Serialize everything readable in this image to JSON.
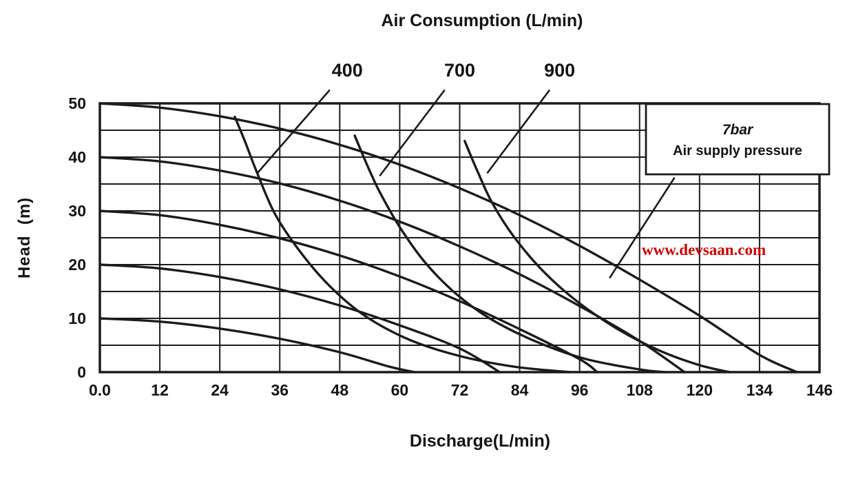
{
  "chart_data": {
    "type": "line",
    "title": "Air Consumption (L/min)",
    "xlabel": "Discharge(L/min)",
    "ylabel": "Head  (m)",
    "watermark": "www.devsaan.com",
    "xlim": [
      0,
      146
    ],
    "ylim": [
      0,
      50
    ],
    "x_ticks": [
      0,
      12,
      24,
      36,
      48,
      60,
      72,
      84,
      96,
      108,
      120,
      134,
      146
    ],
    "x_tick_labels": [
      "0.0",
      "12",
      "24",
      "36",
      "48",
      "60",
      "72",
      "84",
      "96",
      "108",
      "120",
      "134",
      "146"
    ],
    "y_ticks": [
      0,
      10,
      20,
      30,
      40,
      50
    ],
    "y_tick_labels": [
      "0",
      "10",
      "20",
      "30",
      "40",
      "50"
    ],
    "y_minor_grid_step": 5,
    "grid": true,
    "legend": {
      "position": "top-right",
      "line1": "7bar",
      "line2": "Air supply pressure"
    },
    "legend_leader": [
      [
        115,
        36.2
      ],
      [
        102,
        17.5
      ]
    ],
    "series": [
      {
        "name": "pump-curve-head-50m",
        "points": [
          [
            0,
            50
          ],
          [
            12,
            49.2
          ],
          [
            24,
            47.6
          ],
          [
            36,
            45.3
          ],
          [
            48,
            42.3
          ],
          [
            60,
            38.6
          ],
          [
            72,
            34.2
          ],
          [
            84,
            29.2
          ],
          [
            96,
            23.5
          ],
          [
            108,
            17.2
          ],
          [
            120,
            10.5
          ],
          [
            134,
            3.2
          ],
          [
            141.5,
            0
          ]
        ]
      },
      {
        "name": "pump-curve-head-40m",
        "points": [
          [
            0,
            40
          ],
          [
            12,
            39.2
          ],
          [
            24,
            37.5
          ],
          [
            36,
            35.1
          ],
          [
            48,
            31.9
          ],
          [
            60,
            28
          ],
          [
            72,
            23.4
          ],
          [
            84,
            18.2
          ],
          [
            96,
            12.3
          ],
          [
            108,
            5.8
          ],
          [
            117,
            0
          ]
        ]
      },
      {
        "name": "pump-curve-head-30m",
        "points": [
          [
            0,
            30
          ],
          [
            12,
            29.2
          ],
          [
            24,
            27.4
          ],
          [
            36,
            24.9
          ],
          [
            48,
            21.7
          ],
          [
            60,
            17.8
          ],
          [
            72,
            13.2
          ],
          [
            84,
            8
          ],
          [
            96,
            2.4
          ],
          [
            99.5,
            0
          ]
        ]
      },
      {
        "name": "pump-curve-head-20m",
        "points": [
          [
            0,
            20
          ],
          [
            12,
            19.3
          ],
          [
            24,
            17.7
          ],
          [
            36,
            15.4
          ],
          [
            48,
            12.4
          ],
          [
            60,
            8.7
          ],
          [
            72,
            4.4
          ],
          [
            80,
            0
          ]
        ]
      },
      {
        "name": "pump-curve-head-10m",
        "points": [
          [
            0,
            10
          ],
          [
            12,
            9.4
          ],
          [
            24,
            8.1
          ],
          [
            36,
            6.2
          ],
          [
            48,
            3.7
          ],
          [
            58,
            1
          ],
          [
            63,
            0
          ]
        ]
      },
      {
        "name": "air-consumption-400",
        "points": [
          [
            27,
            47.5
          ],
          [
            29,
            43
          ],
          [
            31.5,
            37
          ],
          [
            35,
            29.5
          ],
          [
            40,
            22.5
          ],
          [
            46,
            16
          ],
          [
            53,
            10.5
          ],
          [
            62,
            6
          ],
          [
            72,
            3
          ],
          [
            83,
            1
          ],
          [
            94,
            0
          ]
        ]
      },
      {
        "name": "air-consumption-700",
        "points": [
          [
            51,
            44
          ],
          [
            53.5,
            38.5
          ],
          [
            56,
            33.5
          ],
          [
            60,
            27
          ],
          [
            65,
            20.5
          ],
          [
            71,
            14.8
          ],
          [
            78,
            10
          ],
          [
            87,
            5.8
          ],
          [
            97,
            2.5
          ],
          [
            108,
            0.5
          ],
          [
            113,
            0
          ]
        ]
      },
      {
        "name": "air-consumption-900",
        "points": [
          [
            73,
            43
          ],
          [
            75.5,
            37.5
          ],
          [
            78.5,
            31.5
          ],
          [
            83,
            25
          ],
          [
            89,
            18.5
          ],
          [
            96,
            12.8
          ],
          [
            104,
            7.8
          ],
          [
            112,
            4
          ],
          [
            120,
            1.3
          ],
          [
            127,
            0
          ]
        ]
      }
    ],
    "callouts": [
      {
        "label": "400",
        "label_at": [
          49.5,
          55
        ],
        "line": [
          [
            46,
            52.5
          ],
          [
            31.5,
            37
          ]
        ]
      },
      {
        "label": "700",
        "label_at": [
          72,
          55
        ],
        "line": [
          [
            69,
            52.5
          ],
          [
            56,
            36.5
          ]
        ]
      },
      {
        "label": "900",
        "label_at": [
          92,
          55
        ],
        "line": [
          [
            90,
            52.5
          ],
          [
            77.5,
            37
          ]
        ]
      }
    ]
  }
}
